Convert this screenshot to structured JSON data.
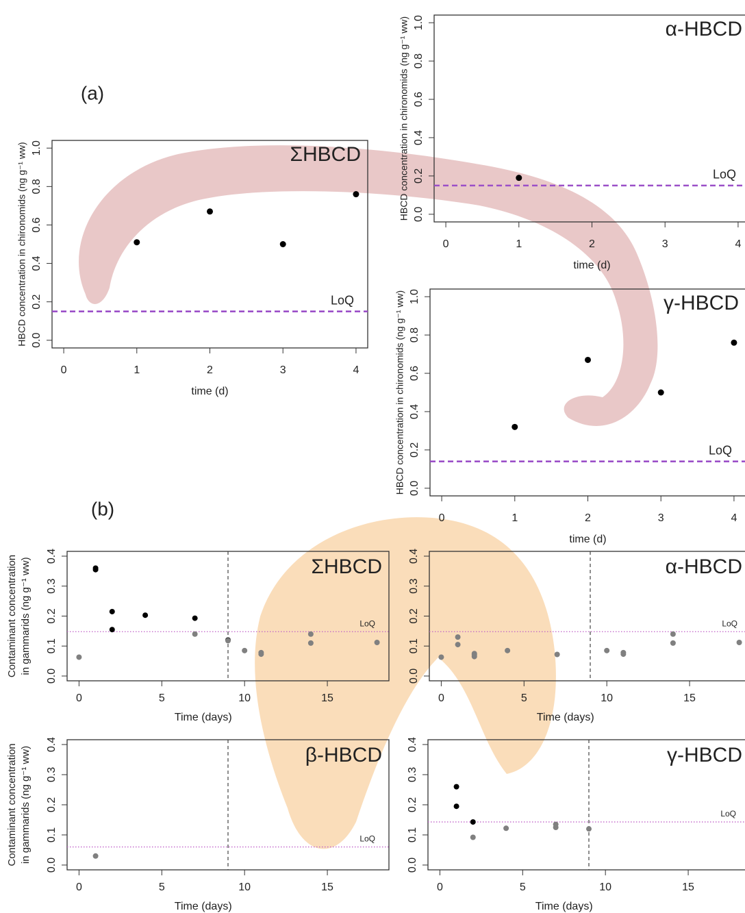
{
  "panel_labels": [
    "(a)",
    "(b)"
  ],
  "chart_data": [
    {
      "type": "scatter",
      "title": "ΣHBCD",
      "xlabel": "time (d)",
      "ylabel": [
        "HBCD concentration in chironomids (ng g⁻¹ ww)"
      ],
      "xlim": [
        -0.16,
        4.16
      ],
      "ylim": [
        -0.04,
        1.04
      ],
      "xticks": [
        0,
        1,
        2,
        3,
        4
      ],
      "yticks": [
        {
          "value": 0,
          "label": "0.0"
        },
        0.2,
        0.4,
        0.6,
        0.8,
        {
          "value": 1,
          "label": "1.0"
        }
      ],
      "series": [
        {
          "color": "#000000",
          "x": [
            1,
            2,
            3,
            4
          ],
          "values": [
            0.51,
            0.67,
            0.5,
            0.76
          ]
        }
      ],
      "loq": {
        "label": "LoQ",
        "value": 0.15,
        "color": "#9b4fc8",
        "style": "dashed"
      }
    },
    {
      "type": "scatter",
      "title": "α-HBCD",
      "xlabel": "time (d)",
      "ylabel": [
        "HBCD concentration in chironomids (ng g⁻¹ ww)"
      ],
      "xlim": [
        -0.16,
        4.16
      ],
      "ylim": [
        -0.04,
        1.04
      ],
      "xticks": [
        0,
        1,
        2,
        3,
        4
      ],
      "yticks": [
        {
          "value": 0,
          "label": "0.0"
        },
        0.2,
        0.4,
        0.6,
        0.8,
        {
          "value": 1,
          "label": "1.0"
        }
      ],
      "series": [
        {
          "color": "#000000",
          "x": [
            1
          ],
          "values": [
            0.19
          ]
        }
      ],
      "loq": {
        "label": "LoQ",
        "value": 0.15,
        "color": "#9b4fc8",
        "style": "dashed"
      }
    },
    {
      "type": "scatter",
      "title": "γ-HBCD",
      "xlabel": "time (d)",
      "ylabel": [
        "HBCD concentration in chironomids (ng g⁻¹ ww)"
      ],
      "xlim": [
        -0.16,
        4.16
      ],
      "ylim": [
        -0.04,
        1.04
      ],
      "xticks": [
        0,
        1,
        2,
        3,
        4
      ],
      "yticks": [
        {
          "value": 0,
          "label": "0.0"
        },
        0.2,
        0.4,
        0.6,
        0.8,
        {
          "value": 1,
          "label": "1.0"
        }
      ],
      "series": [
        {
          "color": "#000000",
          "x": [
            1,
            2,
            3,
            4
          ],
          "values": [
            0.32,
            0.67,
            0.5,
            0.76
          ]
        }
      ],
      "loq": {
        "label": "LoQ",
        "value": 0.14,
        "color": "#9b4fc8",
        "style": "dashed"
      }
    },
    {
      "type": "scatter",
      "title": "ΣHBCD",
      "xlabel": "Time (days)",
      "ylabel": [
        "Contaminant concentration",
        "in gammarids (ng g⁻¹ ww)"
      ],
      "xlim": [
        -0.72,
        18.72
      ],
      "ylim": [
        -0.016,
        0.416
      ],
      "xticks": [
        0,
        5,
        10,
        15
      ],
      "yticks": [
        {
          "value": 0,
          "label": "0.0"
        },
        0.1,
        0.2,
        0.3,
        0.4
      ],
      "series": [
        {
          "color": "#000000",
          "x": [
            1,
            1,
            2,
            2,
            4,
            7,
            9
          ],
          "values": [
            0.36,
            0.355,
            0.215,
            0.155,
            0.203,
            0.193,
            0.12
          ]
        },
        {
          "color": "#808080",
          "x": [
            0,
            7,
            9,
            10,
            11,
            11,
            14,
            14,
            18
          ],
          "values": [
            0.063,
            0.14,
            0.118,
            0.085,
            0.078,
            0.073,
            0.14,
            0.11,
            0.112
          ]
        }
      ],
      "loq": {
        "label": "LoQ",
        "value": 0.148,
        "color": "#c060c8",
        "style": "dotted"
      },
      "vline_x": 9
    },
    {
      "type": "scatter",
      "title": "α-HBCD",
      "xlabel": "Time (days)",
      "xlim": [
        -0.72,
        18.72
      ],
      "ylim": [
        -0.016,
        0.416
      ],
      "xticks": [
        0,
        5,
        10,
        15
      ],
      "yticks": [
        {
          "value": 0,
          "label": "0.0"
        },
        0.1,
        0.2,
        0.3,
        0.4
      ],
      "series": [
        {
          "color": "#808080",
          "x": [
            0,
            1,
            1,
            2,
            2,
            2,
            4,
            7,
            10,
            11,
            11,
            14,
            14,
            18
          ],
          "values": [
            0.063,
            0.13,
            0.105,
            0.075,
            0.07,
            0.065,
            0.085,
            0.072,
            0.085,
            0.078,
            0.073,
            0.14,
            0.11,
            0.112
          ]
        }
      ],
      "loq": {
        "label": "LoQ",
        "value": 0.148,
        "color": "#c060c8",
        "style": "dotted"
      },
      "vline_x": 9
    },
    {
      "type": "scatter",
      "title": "β-HBCD",
      "xlabel": "Time (days)",
      "ylabel": [
        "Contaminant concentration",
        "in gammarids (ng g⁻¹ ww)"
      ],
      "xlim": [
        -0.72,
        18.72
      ],
      "ylim": [
        -0.016,
        0.416
      ],
      "xticks": [
        0,
        5,
        10,
        15
      ],
      "yticks": [
        {
          "value": 0,
          "label": "0.0"
        },
        0.1,
        0.2,
        0.3,
        0.4
      ],
      "series": [
        {
          "color": "#808080",
          "x": [
            1
          ],
          "values": [
            0.03
          ]
        }
      ],
      "loq": {
        "label": "LoQ",
        "value": 0.06,
        "color": "#c060c8",
        "style": "dotted"
      },
      "vline_x": 9
    },
    {
      "type": "scatter",
      "title": "γ-HBCD",
      "xlabel": "Time (days)",
      "xlim": [
        -0.72,
        18.72
      ],
      "ylim": [
        -0.016,
        0.416
      ],
      "xticks": [
        0,
        5,
        10,
        15
      ],
      "yticks": [
        {
          "value": 0,
          "label": "0.0"
        },
        0.1,
        0.2,
        0.3,
        0.4
      ],
      "series": [
        {
          "color": "#000000",
          "x": [
            1,
            1,
            2
          ],
          "values": [
            0.26,
            0.195,
            0.143
          ]
        },
        {
          "color": "#808080",
          "x": [
            2,
            4,
            7,
            7,
            9
          ],
          "values": [
            0.092,
            0.122,
            0.135,
            0.125,
            0.12
          ]
        }
      ],
      "loq": {
        "label": "LoQ",
        "value": 0.143,
        "color": "#c060c8",
        "style": "dotted"
      },
      "vline_x": 9
    }
  ]
}
